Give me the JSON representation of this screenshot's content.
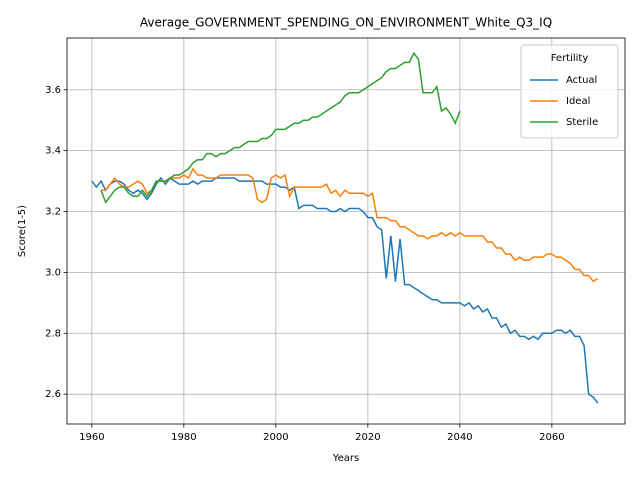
{
  "chart_data": {
    "type": "line",
    "title": "Average_GOVERNMENT_SPENDING_ON_ENVIRONMENT_White_Q3_IQ",
    "xlabel": "Years",
    "ylabel": "Score(1-5)",
    "legend_title": "Fertility",
    "legend": "upper right",
    "grid": true,
    "x": [
      1960,
      1961,
      1962,
      1963,
      1964,
      1965,
      1966,
      1967,
      1968,
      1969,
      1970,
      1971,
      1972,
      1973,
      1974,
      1975,
      1976,
      1977,
      1978,
      1979,
      1980,
      1981,
      1982,
      1983,
      1984,
      1985,
      1986,
      1987,
      1988,
      1989,
      1990,
      1991,
      1992,
      1993,
      1994,
      1995,
      1996,
      1997,
      1998,
      1999,
      2000,
      2001,
      2002,
      2003,
      2004,
      2005,
      2006,
      2007,
      2008,
      2009,
      2010,
      2011,
      2012,
      2013,
      2014,
      2015,
      2016,
      2017,
      2018,
      2019,
      2020,
      2021,
      2022,
      2023,
      2024,
      2025,
      2026,
      2027,
      2028,
      2029,
      2030,
      2031,
      2032,
      2033,
      2034,
      2035,
      2036,
      2037,
      2038,
      2039,
      2040,
      2041,
      2042,
      2043,
      2044,
      2045,
      2046,
      2047,
      2048,
      2049,
      2050,
      2051,
      2052,
      2053,
      2054,
      2055,
      2056,
      2057,
      2058,
      2059,
      2060,
      2061,
      2062,
      2063,
      2064,
      2065,
      2066,
      2067,
      2068,
      2069,
      2070
    ],
    "series": [
      {
        "name": "Actual",
        "color": "#1f77b4",
        "values": [
          3.3,
          3.28,
          3.3,
          3.27,
          3.29,
          3.3,
          3.3,
          3.29,
          3.27,
          3.26,
          3.27,
          3.26,
          3.24,
          3.26,
          3.29,
          3.31,
          3.29,
          3.31,
          3.3,
          3.29,
          3.29,
          3.29,
          3.3,
          3.29,
          3.3,
          3.3,
          3.3,
          3.31,
          3.31,
          3.31,
          3.31,
          3.31,
          3.3,
          3.3,
          3.3,
          3.3,
          3.3,
          3.3,
          3.29,
          3.29,
          3.29,
          3.28,
          3.28,
          3.27,
          3.28,
          3.21,
          3.22,
          3.22,
          3.22,
          3.21,
          3.21,
          3.21,
          3.2,
          3.2,
          3.21,
          3.2,
          3.21,
          3.21,
          3.21,
          3.2,
          3.18,
          3.18,
          3.15,
          3.14,
          2.98,
          3.12,
          2.97,
          3.11,
          2.96,
          2.96,
          2.95,
          2.94,
          2.93,
          2.92,
          2.91,
          2.91,
          2.9,
          2.9,
          2.9,
          2.9,
          2.9,
          2.89,
          2.9,
          2.88,
          2.89,
          2.87,
          2.88,
          2.85,
          2.85,
          2.82,
          2.83,
          2.8,
          2.81,
          2.79,
          2.79,
          2.78,
          2.79,
          2.78,
          2.8,
          2.8,
          2.8,
          2.81,
          2.81,
          2.8,
          2.81,
          2.79,
          2.79,
          2.76,
          2.6,
          2.59,
          2.57
        ]
      },
      {
        "name": "Ideal",
        "color": "#ff7f0e",
        "values": [
          null,
          null,
          3.27,
          3.27,
          3.29,
          3.31,
          3.29,
          3.28,
          3.28,
          3.29,
          3.3,
          3.29,
          3.26,
          3.27,
          3.3,
          3.3,
          3.3,
          3.31,
          3.31,
          3.31,
          3.32,
          3.31,
          3.34,
          3.32,
          3.32,
          3.31,
          3.31,
          3.31,
          3.32,
          3.32,
          3.32,
          3.32,
          3.32,
          3.32,
          3.32,
          3.31,
          3.24,
          3.23,
          3.24,
          3.31,
          3.32,
          3.31,
          3.32,
          3.25,
          3.28,
          3.28,
          3.28,
          3.28,
          3.28,
          3.28,
          3.28,
          3.29,
          3.26,
          3.27,
          3.25,
          3.27,
          3.26,
          3.26,
          3.26,
          3.26,
          3.25,
          3.26,
          3.18,
          3.18,
          3.18,
          3.17,
          3.17,
          3.15,
          3.15,
          3.14,
          3.13,
          3.12,
          3.12,
          3.11,
          3.12,
          3.12,
          3.13,
          3.12,
          3.13,
          3.12,
          3.13,
          3.12,
          3.12,
          3.12,
          3.12,
          3.12,
          3.1,
          3.1,
          3.08,
          3.08,
          3.06,
          3.06,
          3.04,
          3.05,
          3.04,
          3.04,
          3.05,
          3.05,
          3.05,
          3.06,
          3.06,
          3.05,
          3.05,
          3.04,
          3.03,
          3.01,
          3.01,
          2.99,
          2.99,
          2.97,
          2.98
        ]
      },
      {
        "name": "Sterile",
        "color": "#2ca02c",
        "values": [
          null,
          null,
          3.27,
          3.23,
          3.25,
          3.27,
          3.28,
          3.28,
          3.26,
          3.25,
          3.25,
          3.27,
          3.25,
          3.27,
          3.3,
          3.3,
          3.3,
          3.31,
          3.32,
          3.32,
          3.33,
          3.34,
          3.36,
          3.37,
          3.37,
          3.39,
          3.39,
          3.38,
          3.39,
          3.39,
          3.4,
          3.41,
          3.41,
          3.42,
          3.43,
          3.43,
          3.43,
          3.44,
          3.44,
          3.45,
          3.47,
          3.47,
          3.47,
          3.48,
          3.49,
          3.49,
          3.5,
          3.5,
          3.51,
          3.51,
          3.52,
          3.53,
          3.54,
          3.55,
          3.56,
          3.58,
          3.59,
          3.59,
          3.59,
          3.6,
          3.61,
          3.62,
          3.63,
          3.64,
          3.66,
          3.67,
          3.67,
          3.68,
          3.69,
          3.69,
          3.72,
          3.7,
          3.59,
          3.59,
          3.59,
          3.61,
          3.53,
          3.54,
          3.52,
          3.49,
          3.53,
          null,
          null,
          null,
          null,
          null,
          null,
          null,
          null,
          null,
          null,
          null,
          null,
          null,
          null,
          null,
          null,
          null,
          null,
          null,
          null,
          null,
          null,
          null,
          null,
          null,
          null,
          null,
          null,
          null,
          null
        ]
      }
    ],
    "xlim": [
      1954.6,
      2075.9
    ],
    "xticks": [
      1960,
      1980,
      2000,
      2020,
      2040,
      2060
    ],
    "ylim": [
      2.502,
      3.77
    ],
    "yticks": [
      2.6,
      2.8,
      {
        "value": 3,
        "label": "3.0"
      },
      3.2,
      3.4,
      3.6
    ]
  }
}
